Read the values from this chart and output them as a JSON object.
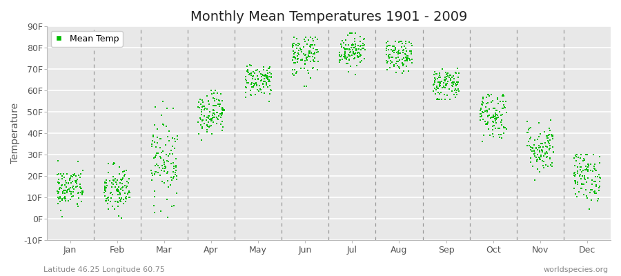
{
  "title": "Monthly Mean Temperatures 1901 - 2009",
  "ylabel": "Temperature",
  "subtitle_left": "Latitude 46.25 Longitude 60.75",
  "subtitle_right": "worldspecies.org",
  "ylim": [
    -10,
    90
  ],
  "yticks": [
    -10,
    0,
    10,
    20,
    30,
    40,
    50,
    60,
    70,
    80,
    90
  ],
  "ytick_labels": [
    "-10F",
    "0F",
    "10F",
    "20F",
    "30F",
    "40F",
    "50F",
    "60F",
    "70F",
    "80F",
    "90F"
  ],
  "months": [
    "Jan",
    "Feb",
    "Mar",
    "Apr",
    "May",
    "Jun",
    "Jul",
    "Aug",
    "Sep",
    "Oct",
    "Nov",
    "Dec"
  ],
  "month_centers": [
    0.5,
    1.5,
    2.5,
    3.5,
    4.5,
    5.5,
    6.5,
    7.5,
    8.5,
    9.5,
    10.5,
    11.5
  ],
  "n_years": 109,
  "dot_color": "#00BB00",
  "dot_size": 3,
  "dot_marker": "s",
  "background_color": "#ffffff",
  "plot_bg_color": "#e8e8e8",
  "grid_color": "#ffffff",
  "dashed_line_color": "#999999",
  "title_fontsize": 14,
  "axis_label_fontsize": 10,
  "tick_fontsize": 9,
  "subtitle_fontsize": 8,
  "legend_label": "Mean Temp",
  "monthly_params": [
    [
      0.5,
      14,
      5,
      -12,
      27
    ],
    [
      1.5,
      13,
      6,
      -13,
      27
    ],
    [
      2.5,
      28,
      10,
      0,
      55
    ],
    [
      3.5,
      50,
      5,
      36,
      60
    ],
    [
      4.5,
      65,
      4,
      55,
      72
    ],
    [
      5.5,
      76,
      5,
      62,
      85
    ],
    [
      6.5,
      79,
      4,
      67,
      87
    ],
    [
      7.5,
      76,
      4,
      63,
      83
    ],
    [
      8.5,
      63,
      4,
      56,
      72
    ],
    [
      9.5,
      49,
      6,
      35,
      58
    ],
    [
      10.5,
      33,
      6,
      18,
      52
    ],
    [
      11.5,
      20,
      6,
      4,
      30
    ]
  ]
}
